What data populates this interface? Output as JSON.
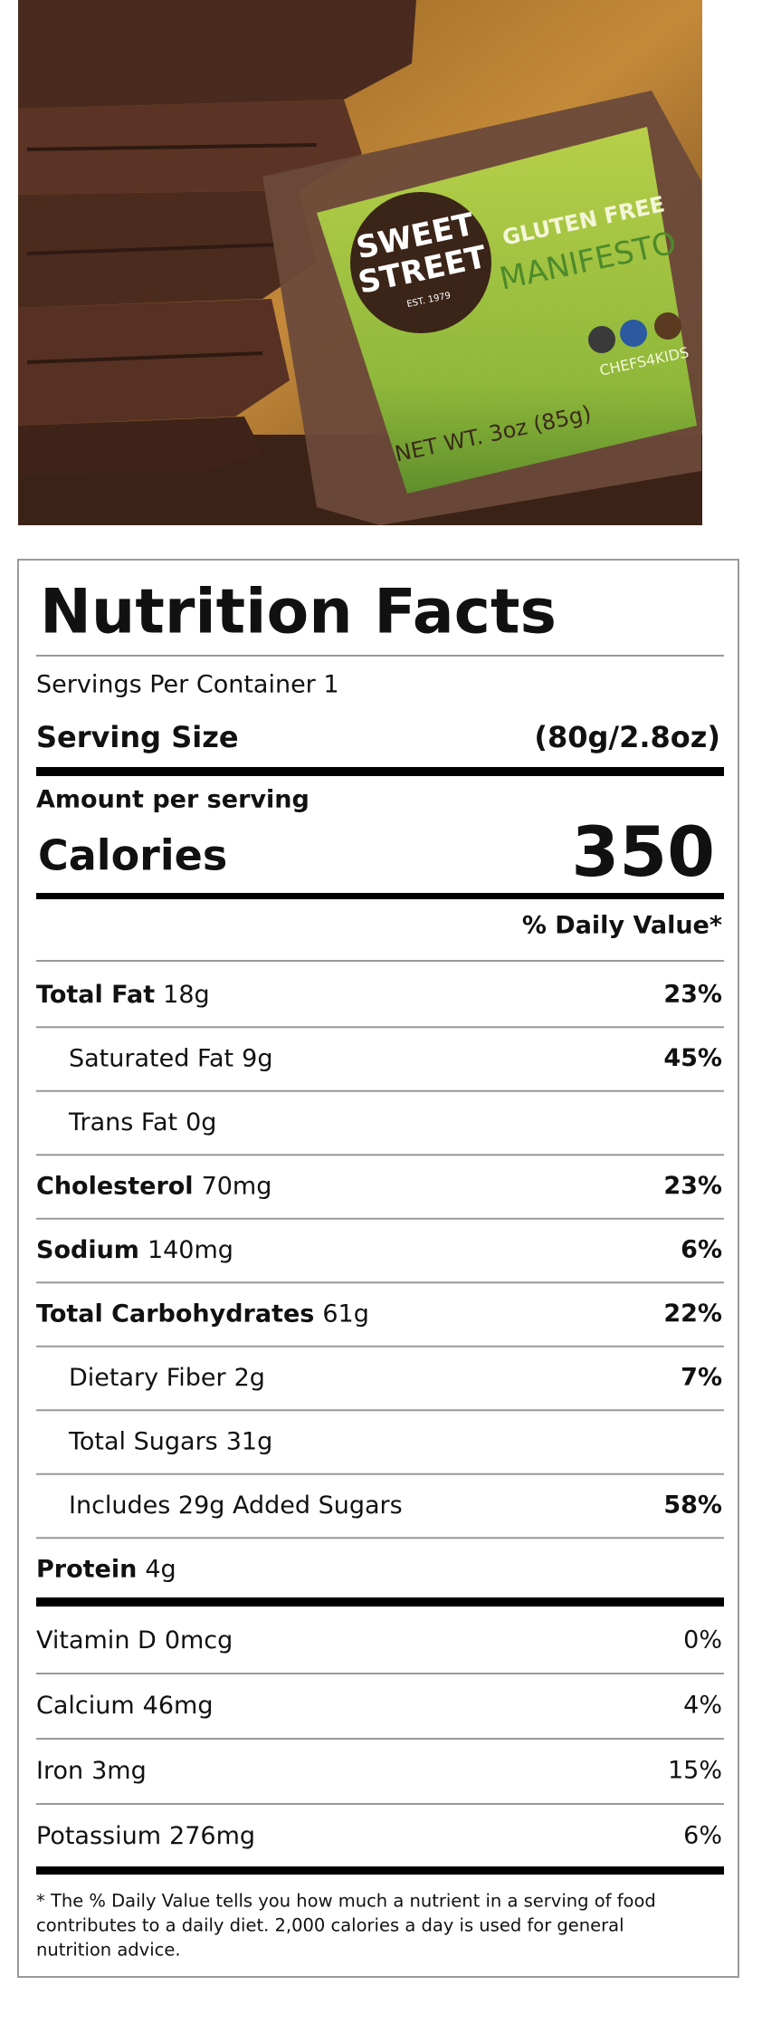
{
  "product_image": {
    "brand_line1": "SWEET",
    "brand_line2": "STREET",
    "established": "EST. 1979",
    "tagline": "GLUTEN FREE",
    "product": "MANIFESTO",
    "partner": "CHEFS4KIDS",
    "net_weight": "NET WT. 3oz (85g)"
  },
  "nutrition_facts": {
    "title": "Nutrition Facts",
    "servings": "Servings Per Container 1",
    "serving_size_label": "Serving Size",
    "serving_size": "(80g/2.8oz)",
    "amount_per_serving": "Amount per serving",
    "calories_label": "Calories",
    "calories": "350",
    "daily_value_header": "% Daily Value*",
    "nutrients": [
      {
        "name": "Total Fat",
        "amount": "18g",
        "dv": "23%",
        "sub_items": [
          {
            "name": "Saturated Fat",
            "amount": "9g",
            "dv": "45%"
          },
          {
            "name": "Trans Fat",
            "amount": "0g"
          }
        ]
      },
      {
        "name": "Cholesterol",
        "amount": "70mg",
        "dv": "23%"
      },
      {
        "name": "Sodium",
        "amount": "140mg",
        "dv": "6%"
      },
      {
        "name": "Total Carbohydrates",
        "amount": "61g",
        "dv": "22%",
        "sub_items": [
          {
            "name": "Dietary Fiber",
            "amount": "2g",
            "dv": "7%"
          },
          {
            "name": "Total Sugars",
            "amount": "31g"
          },
          {
            "name": "Includes 29g Added Sugars",
            "dv": "58%"
          }
        ]
      },
      {
        "name": "Protein",
        "amount": "4g"
      }
    ],
    "vitamins": [
      {
        "name": "Vitamin D",
        "amount": "0mcg",
        "dv": "0%"
      },
      {
        "name": "Calcium",
        "amount": "46mg",
        "dv": "4%"
      },
      {
        "name": "Iron",
        "amount": "3mg",
        "dv": "15%"
      },
      {
        "name": "Potassium",
        "amount": "276mg",
        "dv": "6%"
      }
    ],
    "footnote_line1": "* The % Daily Value tells you how much a nutrient in a serving of food",
    "footnote_line2": "contributes to a daily diet. 2,000 calories a day is used for general",
    "footnote_line3": "nutrition advice."
  }
}
